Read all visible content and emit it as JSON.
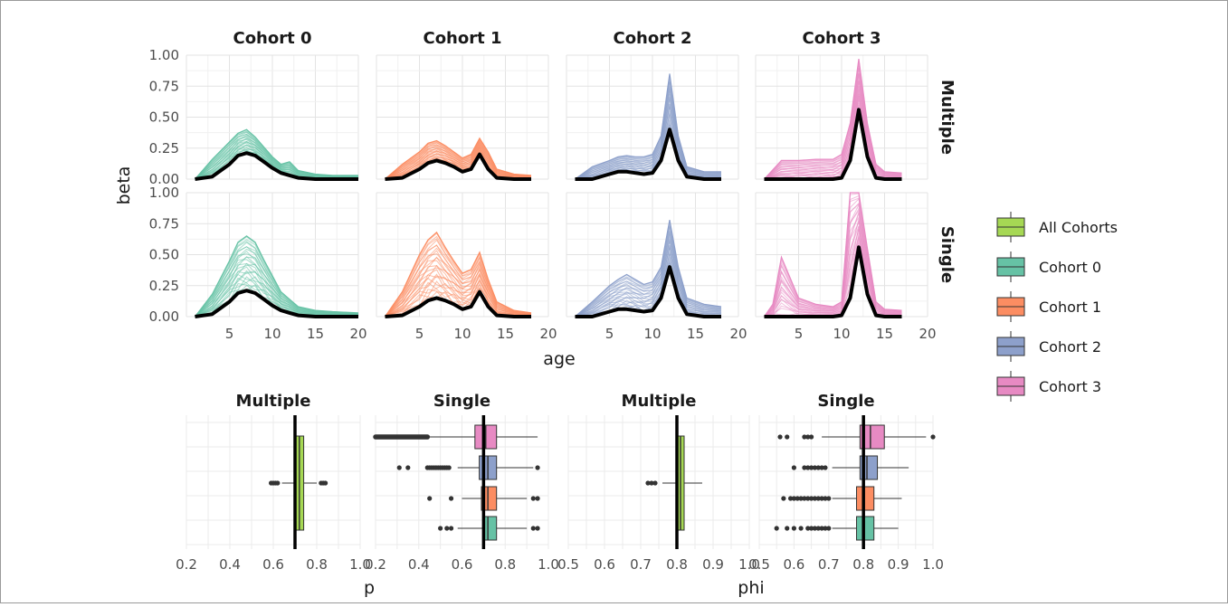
{
  "chart_data": [
    {
      "type": "line",
      "description_role": "beta by age, faceted by cohort (columns) and model (rows)",
      "column_strips": [
        "Cohort 0",
        "Cohort 1",
        "Cohort 2",
        "Cohort 3"
      ],
      "row_strips": [
        "Multiple",
        "Single"
      ],
      "xlabel": "age",
      "ylabel": "beta",
      "xlim": [
        0,
        20
      ],
      "ylim": [
        0,
        1
      ],
      "x_ticks": [
        "5",
        "10",
        "15",
        "20"
      ],
      "y_ticks": [
        "0.00",
        "0.25",
        "0.50",
        "0.75",
        "1.00"
      ],
      "grid": true,
      "series": [
        {
          "cohort": "Cohort 0",
          "model": "Multiple",
          "color": "#66c2a5",
          "mean_x": [
            1,
            3,
            5,
            6,
            7,
            8,
            9,
            10,
            11,
            12,
            13,
            15,
            17,
            20
          ],
          "mean_y": [
            0.0,
            0.02,
            0.12,
            0.19,
            0.21,
            0.19,
            0.14,
            0.09,
            0.05,
            0.03,
            0.01,
            0.0,
            0.0,
            0.0
          ],
          "band_max_y": [
            0.0,
            0.16,
            0.3,
            0.37,
            0.4,
            0.34,
            0.26,
            0.18,
            0.12,
            0.14,
            0.07,
            0.04,
            0.03,
            0.03
          ]
        },
        {
          "cohort": "Cohort 1",
          "model": "Multiple",
          "color": "#fc8d62",
          "mean_x": [
            1,
            3,
            5,
            6,
            7,
            8,
            9,
            10,
            11,
            12,
            13,
            14,
            16,
            18
          ],
          "mean_y": [
            0.0,
            0.01,
            0.08,
            0.13,
            0.15,
            0.13,
            0.1,
            0.06,
            0.08,
            0.2,
            0.08,
            0.01,
            0.0,
            0.0
          ],
          "band_max_y": [
            0.0,
            0.12,
            0.22,
            0.29,
            0.31,
            0.27,
            0.22,
            0.17,
            0.2,
            0.33,
            0.22,
            0.08,
            0.04,
            0.03
          ]
        },
        {
          "cohort": "Cohort 2",
          "model": "Multiple",
          "color": "#8da0cb",
          "mean_x": [
            1,
            3,
            5,
            6,
            7,
            8,
            9,
            10,
            11,
            12,
            13,
            14,
            16,
            18
          ],
          "mean_y": [
            0.0,
            0.0,
            0.04,
            0.06,
            0.06,
            0.05,
            0.04,
            0.05,
            0.15,
            0.4,
            0.15,
            0.02,
            0.0,
            0.0
          ],
          "band_max_y": [
            0.0,
            0.1,
            0.15,
            0.18,
            0.19,
            0.18,
            0.18,
            0.2,
            0.35,
            0.85,
            0.35,
            0.1,
            0.06,
            0.06
          ]
        },
        {
          "cohort": "Cohort 3",
          "model": "Multiple",
          "color": "#e78ac3",
          "mean_x": [
            1,
            3,
            5,
            7,
            9,
            10,
            11,
            12,
            13,
            14,
            15,
            17
          ],
          "mean_y": [
            0.0,
            0.0,
            0.0,
            0.0,
            0.0,
            0.01,
            0.15,
            0.56,
            0.18,
            0.01,
            0.0,
            0.0
          ],
          "band_max_y": [
            0.0,
            0.15,
            0.15,
            0.16,
            0.16,
            0.2,
            0.45,
            0.97,
            0.45,
            0.12,
            0.06,
            0.05
          ]
        },
        {
          "cohort": "Cohort 0",
          "model": "Single",
          "color": "#66c2a5",
          "mean_x": [
            1,
            3,
            5,
            6,
            7,
            8,
            9,
            10,
            11,
            12,
            13,
            15,
            17,
            20
          ],
          "mean_y": [
            0.0,
            0.02,
            0.12,
            0.19,
            0.21,
            0.19,
            0.14,
            0.09,
            0.05,
            0.03,
            0.01,
            0.0,
            0.0,
            0.0
          ],
          "band_max_y": [
            0.0,
            0.18,
            0.45,
            0.6,
            0.65,
            0.6,
            0.46,
            0.33,
            0.2,
            0.14,
            0.08,
            0.05,
            0.04,
            0.03
          ]
        },
        {
          "cohort": "Cohort 1",
          "model": "Single",
          "color": "#fc8d62",
          "mean_x": [
            1,
            3,
            5,
            6,
            7,
            8,
            9,
            10,
            11,
            12,
            13,
            14,
            16,
            18
          ],
          "mean_y": [
            0.0,
            0.01,
            0.08,
            0.13,
            0.15,
            0.13,
            0.1,
            0.06,
            0.08,
            0.2,
            0.08,
            0.01,
            0.0,
            0.0
          ],
          "band_max_y": [
            0.0,
            0.2,
            0.5,
            0.62,
            0.68,
            0.56,
            0.45,
            0.35,
            0.38,
            0.52,
            0.3,
            0.12,
            0.05,
            0.03
          ]
        },
        {
          "cohort": "Cohort 2",
          "model": "Single",
          "color": "#8da0cb",
          "mean_x": [
            1,
            3,
            5,
            6,
            7,
            8,
            9,
            10,
            11,
            12,
            13,
            14,
            16,
            18
          ],
          "mean_y": [
            0.0,
            0.0,
            0.04,
            0.06,
            0.06,
            0.05,
            0.04,
            0.05,
            0.15,
            0.4,
            0.15,
            0.02,
            0.0,
            0.0
          ],
          "band_max_y": [
            0.0,
            0.12,
            0.25,
            0.3,
            0.34,
            0.3,
            0.26,
            0.28,
            0.4,
            0.78,
            0.4,
            0.15,
            0.1,
            0.08
          ]
        },
        {
          "cohort": "Cohort 3",
          "model": "Single",
          "color": "#e78ac3",
          "mean_x": [
            1,
            2,
            3,
            5,
            7,
            9,
            10,
            11,
            12,
            13,
            14,
            15,
            17
          ],
          "mean_y": [
            0.0,
            0.0,
            0.0,
            0.0,
            0.0,
            0.0,
            0.01,
            0.15,
            0.56,
            0.18,
            0.01,
            0.0,
            0.0
          ],
          "band_max_y": [
            0.0,
            0.1,
            0.48,
            0.15,
            0.1,
            0.08,
            0.12,
            1.0,
            1.0,
            0.55,
            0.12,
            0.06,
            0.05
          ]
        }
      ]
    },
    {
      "type": "box",
      "description_role": "distribution of p, faceted by model",
      "column_strips": [
        "Multiple",
        "Single"
      ],
      "xlabel": "p",
      "xlim": [
        0.2,
        1.0
      ],
      "x_ticks": [
        "0.2",
        "0.4",
        "0.6",
        "0.8",
        "1.0"
      ],
      "reference_line_x": 0.7,
      "boxes": [
        {
          "panel": "Multiple",
          "group": "All Cohorts",
          "q1": 0.7,
          "median": 0.72,
          "q3": 0.74,
          "whisker_low": 0.64,
          "whisker_high": 0.8,
          "outliers": [
            0.59,
            0.6,
            0.61,
            0.62,
            0.82,
            0.83,
            0.84
          ]
        },
        {
          "panel": "Single",
          "group": "Cohort 3",
          "q1": 0.66,
          "median": 0.71,
          "q3": 0.76,
          "whisker_low": 0.45,
          "whisker_high": 0.95,
          "outlier_range": [
            0.2,
            0.44
          ]
        },
        {
          "panel": "Single",
          "group": "Cohort 2",
          "q1": 0.68,
          "median": 0.72,
          "q3": 0.76,
          "whisker_low": 0.58,
          "whisker_high": 0.93,
          "outliers": [
            0.31,
            0.35,
            0.44,
            0.45,
            0.46,
            0.47,
            0.48,
            0.49,
            0.5,
            0.51,
            0.52,
            0.53,
            0.54,
            0.95
          ]
        },
        {
          "panel": "Single",
          "group": "Cohort 1",
          "q1": 0.69,
          "median": 0.72,
          "q3": 0.76,
          "whisker_low": 0.6,
          "whisker_high": 0.9,
          "outliers": [
            0.45,
            0.55,
            0.93,
            0.95
          ]
        },
        {
          "panel": "Single",
          "group": "Cohort 0",
          "q1": 0.7,
          "median": 0.72,
          "q3": 0.76,
          "whisker_low": 0.58,
          "whisker_high": 0.9,
          "outliers": [
            0.5,
            0.53,
            0.55,
            0.93,
            0.95
          ]
        }
      ]
    },
    {
      "type": "box",
      "description_role": "distribution of phi, faceted by model",
      "column_strips": [
        "Multiple",
        "Single"
      ],
      "xlabel": "phi",
      "xlim": [
        0.5,
        1.0
      ],
      "x_ticks": [
        "0.5",
        "0.6",
        "0.7",
        "0.8",
        "0.9",
        "1.0"
      ],
      "reference_line_x": 0.8,
      "boxes": [
        {
          "panel": "Multiple",
          "group": "All Cohorts",
          "q1": 0.8,
          "median": 0.81,
          "q3": 0.82,
          "whisker_low": 0.76,
          "whisker_high": 0.87,
          "outliers": [
            0.72,
            0.73,
            0.74
          ]
        },
        {
          "panel": "Single",
          "group": "Cohort 3",
          "q1": 0.79,
          "median": 0.82,
          "q3": 0.86,
          "whisker_low": 0.68,
          "whisker_high": 0.98,
          "outliers": [
            0.56,
            0.58,
            0.63,
            0.64,
            0.65,
            1.0
          ]
        },
        {
          "panel": "Single",
          "group": "Cohort 2",
          "q1": 0.79,
          "median": 0.81,
          "q3": 0.84,
          "whisker_low": 0.71,
          "whisker_high": 0.93,
          "outliers": [
            0.6,
            0.63,
            0.64,
            0.65,
            0.66,
            0.67,
            0.68,
            0.69
          ]
        },
        {
          "panel": "Single",
          "group": "Cohort 1",
          "q1": 0.78,
          "median": 0.8,
          "q3": 0.83,
          "whisker_low": 0.71,
          "whisker_high": 0.91,
          "outliers": [
            0.57,
            0.59,
            0.6,
            0.61,
            0.62,
            0.63,
            0.64,
            0.65,
            0.66,
            0.67,
            0.68,
            0.69,
            0.7
          ]
        },
        {
          "panel": "Single",
          "group": "Cohort 0",
          "q1": 0.78,
          "median": 0.8,
          "q3": 0.83,
          "whisker_low": 0.71,
          "whisker_high": 0.9,
          "outliers": [
            0.55,
            0.58,
            0.6,
            0.62,
            0.64,
            0.65,
            0.66,
            0.67,
            0.68,
            0.69,
            0.7
          ]
        }
      ]
    }
  ],
  "legend": {
    "placement": "right",
    "items": [
      {
        "label": "All Cohorts",
        "color": "#a6d854"
      },
      {
        "label": "Cohort 0",
        "color": "#66c2a5"
      },
      {
        "label": "Cohort 1",
        "color": "#fc8d62"
      },
      {
        "label": "Cohort 2",
        "color": "#8da0cb"
      },
      {
        "label": "Cohort 3",
        "color": "#e78ac3"
      }
    ]
  }
}
